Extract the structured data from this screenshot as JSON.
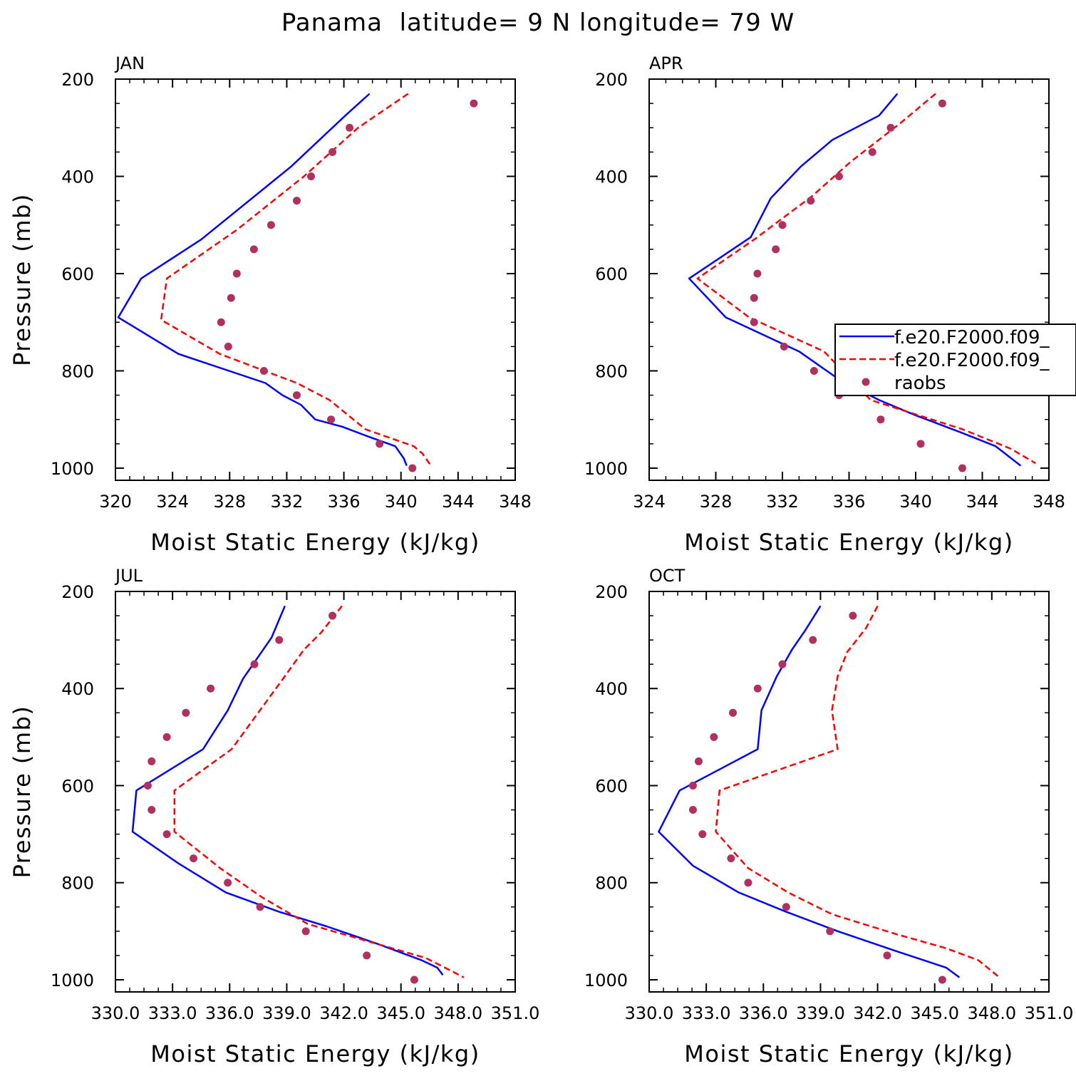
{
  "title": "Panama  latitude= 9 N longitude= 79 W",
  "colors": {
    "model1": "#0000ff",
    "model2": "#ff0000",
    "obs": "#b03060",
    "axes": "#000000"
  },
  "chart_data": [
    {
      "type": "line",
      "panel_title": "JAN",
      "xlabel": "Moist Static Energy (kJ/kg)",
      "ylabel": "Pressure (mb)",
      "xlim": [
        320,
        348
      ],
      "ylim": [
        200,
        1025
      ],
      "y_inverted": true,
      "xticks": [
        320,
        324,
        328,
        332,
        336,
        340,
        344,
        348
      ],
      "xtick_labels": [
        "320",
        "324",
        "328",
        "332",
        "336",
        "340",
        "344",
        "348"
      ],
      "yticks": [
        200,
        400,
        600,
        800,
        1000
      ],
      "series": [
        {
          "name": "f.e20.F2000.f09",
          "style": "solid",
          "color": "#0000ff",
          "x": [
            337.8,
            336.1,
            332.3,
            326.0,
            321.8,
            320.2,
            324.4,
            330.5,
            331.7,
            333.0,
            334.0,
            335.9,
            337.7,
            339.6,
            340.2,
            340.4
          ],
          "y": [
            230,
            275,
            380,
            530,
            610,
            690,
            765,
            825,
            850,
            870,
            900,
            915,
            935,
            955,
            980,
            995
          ]
        },
        {
          "name": "f.e20.F2000.f09",
          "style": "dashed",
          "color": "#ff0000",
          "x": [
            340.5,
            337.0,
            333.2,
            328.5,
            323.6,
            323.2,
            327.3,
            332.7,
            335.0,
            337.5,
            340.9,
            341.5,
            342.1
          ],
          "y": [
            230,
            300,
            400,
            510,
            610,
            695,
            765,
            825,
            860,
            920,
            955,
            970,
            995
          ]
        },
        {
          "name": "raobs",
          "style": "markers",
          "color": "#b03060",
          "x": [
            345.1,
            336.4,
            335.2,
            333.7,
            332.7,
            330.9,
            329.7,
            328.5,
            328.1,
            327.4,
            327.9,
            330.4,
            332.7,
            335.1,
            338.5,
            340.8
          ],
          "y": [
            250,
            300,
            350,
            400,
            450,
            500,
            550,
            600,
            650,
            700,
            750,
            800,
            850,
            900,
            950,
            1000
          ]
        }
      ]
    },
    {
      "type": "line",
      "panel_title": "APR",
      "xlabel": "Moist Static Energy (kJ/kg)",
      "ylabel": "",
      "xlim": [
        324,
        348
      ],
      "ylim": [
        200,
        1025
      ],
      "y_inverted": true,
      "xticks": [
        324,
        328,
        332,
        336,
        340,
        344,
        348
      ],
      "xtick_labels": [
        "324",
        "328",
        "332",
        "336",
        "340",
        "344",
        "348"
      ],
      "yticks": [
        200,
        400,
        600,
        800,
        1000
      ],
      "legend": {
        "placement": "right",
        "entries": [
          {
            "label": "f.e20.F2000.f09_",
            "style": "solid",
            "color": "#0000ff"
          },
          {
            "label": "f.e20.F2000.f09_",
            "style": "dashed",
            "color": "#ff0000"
          },
          {
            "label": "raobs",
            "style": "markers",
            "color": "#b03060"
          }
        ]
      },
      "series": [
        {
          "name": "f.e20.F2000.f09",
          "style": "solid",
          "color": "#0000ff",
          "x": [
            338.9,
            337.8,
            335.0,
            333.1,
            331.3,
            330.1,
            326.4,
            328.6,
            333.0,
            335.5,
            337.8,
            339.9,
            342.6,
            344.8,
            346.3
          ],
          "y": [
            230,
            275,
            325,
            380,
            445,
            525,
            610,
            690,
            760,
            820,
            860,
            890,
            925,
            955,
            995
          ]
        },
        {
          "name": "f.e20.F2000.f09",
          "style": "dashed",
          "color": "#ff0000",
          "x": [
            341.2,
            339.1,
            336.1,
            333.8,
            330.3,
            326.9,
            330.0,
            334.5,
            337.3,
            342.8,
            345.7,
            347.2
          ],
          "y": [
            230,
            290,
            370,
            440,
            530,
            610,
            690,
            760,
            860,
            920,
            960,
            990
          ]
        },
        {
          "name": "raobs",
          "style": "markers",
          "color": "#b03060",
          "x": [
            341.6,
            338.5,
            337.4,
            335.4,
            333.7,
            332.0,
            331.6,
            330.5,
            330.3,
            330.3,
            332.1,
            333.9,
            335.4,
            337.0,
            337.9,
            340.3,
            342.8
          ],
          "y": [
            250,
            300,
            350,
            400,
            450,
            500,
            550,
            600,
            650,
            700,
            750,
            800,
            850,
            825,
            900,
            950,
            1000
          ]
        }
      ]
    },
    {
      "type": "line",
      "panel_title": "JUL",
      "xlabel": "Moist Static Energy (kJ/kg)",
      "ylabel": "Pressure (mb)",
      "xlim": [
        330.0,
        351.0
      ],
      "ylim": [
        200,
        1025
      ],
      "y_inverted": true,
      "xticks": [
        330.0,
        333.0,
        336.0,
        339.0,
        342.0,
        345.0,
        348.0,
        351.0
      ],
      "xtick_labels": [
        "330.0",
        "333.0",
        "336.0",
        "339.0",
        "342.0",
        "345.0",
        "348.0",
        "351.0"
      ],
      "yticks": [
        200,
        400,
        600,
        800,
        1000
      ],
      "series": [
        {
          "name": "f.e20.F2000.f09",
          "style": "solid",
          "color": "#0000ff",
          "x": [
            338.9,
            338.2,
            336.7,
            335.9,
            334.6,
            331.1,
            330.9,
            333.3,
            335.8,
            338.6,
            341.1,
            343.7,
            346.1,
            346.9,
            347.2
          ],
          "y": [
            230,
            295,
            380,
            445,
            525,
            610,
            695,
            760,
            820,
            860,
            890,
            925,
            960,
            975,
            990
          ]
        },
        {
          "name": "f.e20.F2000.f09",
          "style": "dashed",
          "color": "#ff0000",
          "x": [
            341.9,
            340.8,
            339.9,
            338.8,
            336.1,
            333.1,
            333.1,
            335.5,
            337.7,
            340.1,
            343.2,
            346.3,
            347.3,
            348.3
          ],
          "y": [
            230,
            285,
            320,
            380,
            525,
            610,
            695,
            770,
            830,
            885,
            920,
            955,
            975,
            995
          ]
        },
        {
          "name": "raobs",
          "style": "markers",
          "color": "#b03060",
          "x": [
            341.4,
            338.6,
            337.3,
            335.0,
            333.7,
            332.7,
            331.9,
            331.7,
            331.9,
            332.7,
            334.1,
            335.9,
            337.6,
            340.0,
            343.2,
            345.7
          ],
          "y": [
            250,
            300,
            350,
            400,
            450,
            500,
            550,
            600,
            650,
            700,
            750,
            800,
            850,
            900,
            950,
            1000
          ]
        }
      ]
    },
    {
      "type": "line",
      "panel_title": "OCT",
      "xlabel": "Moist Static Energy (kJ/kg)",
      "ylabel": "",
      "xlim": [
        330.0,
        351.0
      ],
      "ylim": [
        200,
        1025
      ],
      "y_inverted": true,
      "xticks": [
        330.0,
        333.0,
        336.0,
        339.0,
        342.0,
        345.0,
        348.0,
        351.0
      ],
      "xtick_labels": [
        "330.0",
        "333.0",
        "336.0",
        "339.0",
        "342.0",
        "345.0",
        "348.0",
        "351.0"
      ],
      "yticks": [
        200,
        400,
        600,
        800,
        1000
      ],
      "series": [
        {
          "name": "f.e20.F2000.f09",
          "style": "solid",
          "color": "#0000ff",
          "x": [
            339.0,
            338.2,
            337.5,
            336.7,
            335.9,
            335.7,
            331.6,
            330.5,
            332.3,
            334.7,
            337.2,
            339.9,
            342.9,
            345.6,
            346.3
          ],
          "y": [
            230,
            280,
            320,
            375,
            445,
            525,
            610,
            695,
            765,
            820,
            860,
            900,
            940,
            975,
            995
          ]
        },
        {
          "name": "f.e20.F2000.f09",
          "style": "dashed",
          "color": "#ff0000",
          "x": [
            342.0,
            341.4,
            340.4,
            339.9,
            339.6,
            339.9,
            333.7,
            333.5,
            335.2,
            337.3,
            339.6,
            342.9,
            345.6,
            347.3,
            348.4
          ],
          "y": [
            230,
            275,
            325,
            375,
            445,
            525,
            610,
            695,
            770,
            820,
            865,
            905,
            935,
            960,
            995
          ]
        },
        {
          "name": "raobs",
          "style": "markers",
          "color": "#b03060",
          "x": [
            340.7,
            338.6,
            337.0,
            335.7,
            334.4,
            333.4,
            332.6,
            332.3,
            332.3,
            332.8,
            334.3,
            335.2,
            337.2,
            339.5,
            342.5,
            345.4
          ],
          "y": [
            250,
            300,
            350,
            400,
            450,
            500,
            550,
            600,
            650,
            700,
            750,
            800,
            850,
            900,
            950,
            1000
          ]
        }
      ]
    }
  ]
}
